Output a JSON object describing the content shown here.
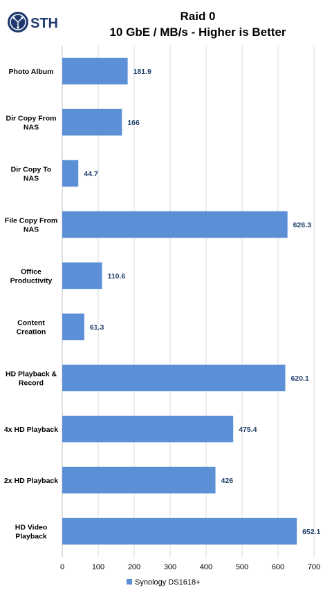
{
  "logo": {
    "text": "STH"
  },
  "chart_data": {
    "type": "bar",
    "orientation": "horizontal",
    "title": "Raid 0",
    "subtitle": "10 GbE / MB/s - Higher is Better",
    "categories": [
      [
        "Photo Album"
      ],
      [
        "Dir Copy From",
        "NAS"
      ],
      [
        "Dir Copy To",
        "NAS"
      ],
      [
        "File Copy From",
        "NAS"
      ],
      [
        "Office",
        "Productivity"
      ],
      [
        "Content",
        "Creation"
      ],
      [
        "HD Playback &",
        "Record"
      ],
      [
        "4x HD Playback"
      ],
      [
        "2x HD Playback"
      ],
      [
        "HD Video",
        "Playback"
      ]
    ],
    "series": [
      {
        "name": "Synology DS1618+",
        "color": "#5b8fd6",
        "values": [
          181.9,
          166,
          44.7,
          626.3,
          110.6,
          61.3,
          620.1,
          475.4,
          426,
          652.1
        ]
      }
    ],
    "xlim": [
      0,
      700
    ],
    "xticks": [
      0,
      100,
      200,
      300,
      400,
      500,
      600,
      700
    ],
    "grid": true,
    "legend": "bottom"
  }
}
